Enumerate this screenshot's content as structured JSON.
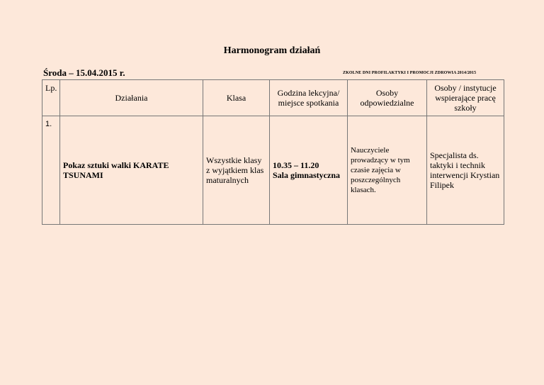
{
  "title": "Harmonogram działań",
  "date_line": "Środa – 15.04.2015 r.",
  "subtitle": "ZKOLNE DNI PROFILAKTYKI I PROMOCJI ZDROWIA 2014/2015",
  "table": {
    "headers": [
      "Lp.",
      "Działania",
      "Klasa",
      "Godzina lekcyjna/ miejsce spotkania",
      "Osoby odpowiedzialne",
      "Osoby / instytucje wspierające pracę szkoły"
    ],
    "rows": [
      {
        "lp": "1.",
        "dzialania": "Pokaz sztuki walki KARATE TSUNAMI",
        "klasa": "Wszystkie klasy z wyjątkiem klas maturalnych",
        "godzina": "10.35 – 11.20",
        "miejsce": "Sala gimnastyczna",
        "odpowiedzialne": "Nauczyciele prowadzący w tym czasie zajęcia w poszczególnych klasach.",
        "wspierajace": "Specjalista ds. taktyki i technik interwencji Krystian Filipek"
      }
    ]
  }
}
